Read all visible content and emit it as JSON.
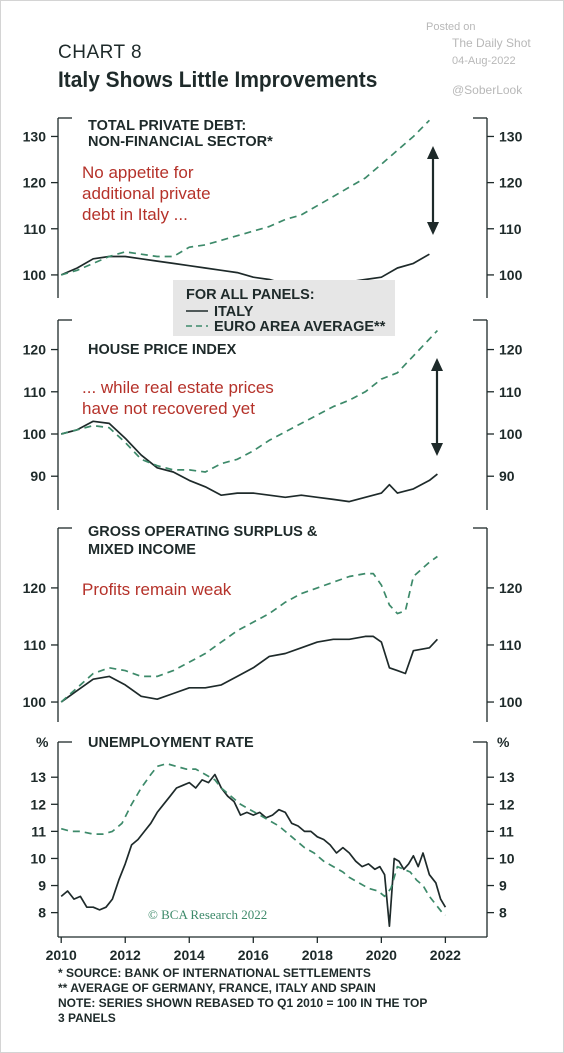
{
  "header": {
    "chart_number": "CHART 8",
    "title": "Italy Shows Little Improvements"
  },
  "watermark": {
    "posted_on": "Posted on",
    "source": "The Daily Shot",
    "date": "04-Aug-2022",
    "handle": "@SoberLook"
  },
  "legend": {
    "title": "FOR ALL PANELS:",
    "italy": "ITALY",
    "euro": "EURO AREA AVERAGE**"
  },
  "credit": "© BCA Research 2022",
  "footnotes": [
    "*  SOURCE: BANK OF INTERNATIONAL SETTLEMENTS",
    "** AVERAGE OF GERMANY, FRANCE, ITALY AND SPAIN",
    "NOTE: SERIES SHOWN REBASED TO Q1 2010 = 100 IN THE TOP",
    "3 PANELS"
  ],
  "colors": {
    "italy": "#1e2a2a",
    "euro": "#3d8a6a",
    "annotation": "#b5322a",
    "legend_bg": "#e6e6e6"
  },
  "chart_data": [
    {
      "type": "line",
      "title": "TOTAL PRIVATE DEBT:",
      "subtitle": "NON-FINANCIAL SECTOR*",
      "annotation": "No appetite for additional private debt in Italy ...",
      "annotation_lines": [
        "No appetite for",
        "additional private",
        "debt in Italy ..."
      ],
      "arrow": "double-headed",
      "ylim": [
        95,
        134
      ],
      "yticks": [
        100,
        110,
        120,
        130
      ],
      "ytick_labels": [
        "100",
        "110",
        "120",
        "130"
      ],
      "series": [
        {
          "name": "ITALY",
          "style": "solid",
          "x": [
            2010.0,
            2010.5,
            2011.0,
            2011.5,
            2012.0,
            2012.5,
            2013.0,
            2013.5,
            2014.0,
            2014.5,
            2015.0,
            2015.5,
            2016.0,
            2016.5,
            2017.0,
            2017.5,
            2018.0,
            2018.5,
            2019.0,
            2019.5,
            2020.0,
            2020.5,
            2021.0,
            2021.5
          ],
          "values": [
            100,
            101.5,
            103.5,
            104,
            104,
            103.5,
            103,
            102.5,
            102,
            101.5,
            101,
            100.5,
            99.5,
            99,
            98,
            97.5,
            98,
            98,
            98.5,
            99,
            99.5,
            101.5,
            102.5,
            104.5
          ]
        },
        {
          "name": "EURO AREA AVERAGE**",
          "style": "dashed",
          "x": [
            2010.0,
            2010.5,
            2011.0,
            2011.5,
            2012.0,
            2012.5,
            2013.0,
            2013.5,
            2014.0,
            2014.5,
            2015.0,
            2015.5,
            2016.0,
            2016.5,
            2017.0,
            2017.5,
            2018.0,
            2018.5,
            2019.0,
            2019.5,
            2020.0,
            2020.5,
            2021.0,
            2021.5
          ],
          "values": [
            100,
            101,
            102.5,
            104,
            105,
            104.5,
            104,
            104,
            106,
            106.5,
            107.5,
            108.5,
            109.5,
            110.5,
            112,
            113,
            115,
            117,
            119,
            121,
            124,
            127,
            130,
            133.5
          ]
        }
      ]
    },
    {
      "type": "line",
      "title": "HOUSE PRICE INDEX",
      "annotation": "... while real estate prices have not recovered yet",
      "annotation_lines": [
        "... while real estate prices",
        "have not recovered yet"
      ],
      "arrow": "double-headed",
      "ylim": [
        82,
        127
      ],
      "yticks": [
        90,
        100,
        110,
        120
      ],
      "ytick_labels": [
        "90",
        "100",
        "110",
        "120"
      ],
      "series": [
        {
          "name": "ITALY",
          "style": "solid",
          "x": [
            2010.0,
            2010.5,
            2011.0,
            2011.5,
            2012.0,
            2012.5,
            2013.0,
            2013.5,
            2014.0,
            2014.5,
            2015.0,
            2015.5,
            2016.0,
            2016.5,
            2017.0,
            2017.5,
            2018.0,
            2018.5,
            2019.0,
            2019.5,
            2020.0,
            2020.25,
            2020.5,
            2021.0,
            2021.5,
            2021.75
          ],
          "values": [
            100,
            101,
            103,
            102.5,
            99,
            95,
            92,
            91,
            89,
            87.5,
            85.5,
            86,
            86,
            85.5,
            85,
            85.5,
            85,
            84.5,
            84,
            85,
            86,
            88,
            86,
            87,
            89,
            90.5
          ]
        },
        {
          "name": "EURO AREA AVERAGE**",
          "style": "dashed",
          "x": [
            2010.0,
            2010.5,
            2011.0,
            2011.5,
            2012.0,
            2012.5,
            2013.0,
            2013.5,
            2014.0,
            2014.5,
            2015.0,
            2015.5,
            2016.0,
            2016.5,
            2017.0,
            2017.5,
            2018.0,
            2018.5,
            2019.0,
            2019.5,
            2020.0,
            2020.5,
            2021.0,
            2021.5,
            2021.75
          ],
          "values": [
            100,
            101,
            102,
            101.5,
            98,
            94,
            92.5,
            91.5,
            91.5,
            91,
            93,
            94,
            96,
            98.5,
            100.5,
            102.5,
            104.5,
            106.5,
            108,
            110,
            113,
            114.5,
            118.5,
            122.5,
            124.5
          ]
        }
      ]
    },
    {
      "type": "line",
      "title": "GROSS OPERATING SURPLUS &",
      "subtitle": "MIXED INCOME",
      "annotation": "Profits remain weak",
      "annotation_lines": [
        "Profits remain weak"
      ],
      "ylim": [
        96.5,
        130.5
      ],
      "yticks": [
        100,
        110,
        120
      ],
      "ytick_labels": [
        "100",
        "110",
        "120"
      ],
      "series": [
        {
          "name": "ITALY",
          "style": "solid",
          "x": [
            2010.0,
            2010.5,
            2011.0,
            2011.5,
            2012.0,
            2012.5,
            2013.0,
            2013.5,
            2014.0,
            2014.5,
            2015.0,
            2015.5,
            2016.0,
            2016.5,
            2017.0,
            2017.5,
            2018.0,
            2018.5,
            2019.0,
            2019.5,
            2019.75,
            2020.0,
            2020.25,
            2020.5,
            2020.75,
            2021.0,
            2021.5,
            2021.75
          ],
          "values": [
            100,
            102,
            104,
            104.5,
            103,
            101,
            100.5,
            101.5,
            102.5,
            102.5,
            103,
            104.5,
            106,
            108,
            108.5,
            109.5,
            110.5,
            111,
            111,
            111.5,
            111.5,
            110.5,
            106,
            105.5,
            105,
            109,
            109.5,
            111
          ]
        },
        {
          "name": "EURO AREA AVERAGE**",
          "style": "dashed",
          "x": [
            2010.0,
            2010.5,
            2011.0,
            2011.5,
            2012.0,
            2012.5,
            2013.0,
            2013.5,
            2014.0,
            2014.5,
            2015.0,
            2015.5,
            2016.0,
            2016.5,
            2017.0,
            2017.5,
            2018.0,
            2018.5,
            2019.0,
            2019.5,
            2019.75,
            2020.0,
            2020.25,
            2020.5,
            2020.75,
            2021.0,
            2021.5,
            2021.75
          ],
          "values": [
            100,
            102.5,
            105,
            106,
            105.5,
            104.5,
            104.5,
            105.5,
            107,
            108.5,
            110.5,
            112.5,
            114,
            115.5,
            117.5,
            119,
            120,
            121,
            122,
            122.5,
            122.5,
            120.5,
            117,
            115.5,
            116,
            122,
            124.5,
            125.5
          ]
        }
      ]
    },
    {
      "type": "line",
      "title": "UNEMPLOYMENT RATE",
      "yunit": "%",
      "ylim": [
        7.1,
        14.3
      ],
      "yticks": [
        8,
        9,
        10,
        11,
        12,
        13
      ],
      "ytick_labels": [
        "8",
        "9",
        "10",
        "11",
        "12",
        "13"
      ],
      "series": [
        {
          "name": "ITALY",
          "style": "solid",
          "x": [
            2010.0,
            2010.2,
            2010.4,
            2010.6,
            2010.8,
            2011.0,
            2011.2,
            2011.4,
            2011.6,
            2011.8,
            2012.0,
            2012.2,
            2012.4,
            2012.6,
            2012.8,
            2013.0,
            2013.2,
            2013.4,
            2013.6,
            2013.8,
            2014.0,
            2014.2,
            2014.4,
            2014.6,
            2014.8,
            2015.0,
            2015.2,
            2015.4,
            2015.6,
            2015.8,
            2016.0,
            2016.2,
            2016.4,
            2016.6,
            2016.8,
            2017.0,
            2017.2,
            2017.4,
            2017.6,
            2017.8,
            2018.0,
            2018.2,
            2018.4,
            2018.6,
            2018.8,
            2019.0,
            2019.2,
            2019.4,
            2019.6,
            2019.8,
            2019.95,
            2020.1,
            2020.25,
            2020.4,
            2020.55,
            2020.7,
            2020.85,
            2021.0,
            2021.15,
            2021.3,
            2021.5,
            2021.7,
            2021.85,
            2022.0
          ],
          "values": [
            8.6,
            8.8,
            8.5,
            8.6,
            8.2,
            8.2,
            8.1,
            8.2,
            8.5,
            9.2,
            9.8,
            10.5,
            10.7,
            11.0,
            11.3,
            11.7,
            12.0,
            12.3,
            12.6,
            12.7,
            12.8,
            12.6,
            12.9,
            12.8,
            13.1,
            12.6,
            12.3,
            12.1,
            11.6,
            11.7,
            11.6,
            11.7,
            11.5,
            11.6,
            11.8,
            11.7,
            11.3,
            11.2,
            11.0,
            11.0,
            10.8,
            10.7,
            10.5,
            10.2,
            10.4,
            10.2,
            9.9,
            9.7,
            9.8,
            9.6,
            9.7,
            9.4,
            7.5,
            10.0,
            9.9,
            9.6,
            9.8,
            10.1,
            9.7,
            10.2,
            9.4,
            9.1,
            8.5,
            8.2
          ]
        },
        {
          "name": "EURO AREA AVERAGE**",
          "style": "dashed",
          "x": [
            2010.0,
            2010.3,
            2010.6,
            2011.0,
            2011.3,
            2011.6,
            2011.9,
            2012.2,
            2012.5,
            2012.8,
            2013.0,
            2013.3,
            2013.6,
            2013.9,
            2014.2,
            2014.5,
            2014.8,
            2015.0,
            2015.3,
            2015.6,
            2015.9,
            2016.2,
            2016.5,
            2016.8,
            2017.0,
            2017.3,
            2017.6,
            2017.9,
            2018.2,
            2018.5,
            2018.8,
            2019.0,
            2019.3,
            2019.6,
            2019.9,
            2020.1,
            2020.3,
            2020.5,
            2020.7,
            2020.9,
            2021.1,
            2021.3,
            2021.5,
            2021.7,
            2021.9,
            2022.0
          ],
          "values": [
            11.1,
            11.0,
            11.0,
            10.9,
            10.9,
            11.0,
            11.3,
            12.0,
            12.6,
            13.1,
            13.4,
            13.5,
            13.4,
            13.3,
            13.3,
            13.1,
            12.9,
            12.6,
            12.3,
            12.0,
            11.8,
            11.6,
            11.4,
            11.2,
            11.0,
            10.7,
            10.4,
            10.2,
            9.9,
            9.7,
            9.5,
            9.3,
            9.1,
            8.9,
            8.8,
            8.6,
            8.9,
            9.7,
            9.6,
            9.5,
            9.2,
            9.0,
            8.6,
            8.3,
            8.0,
            7.9
          ]
        }
      ]
    }
  ],
  "xaxis": {
    "xlim": [
      2009.9,
      2023.3
    ],
    "ticks": [
      2010,
      2012,
      2014,
      2016,
      2018,
      2020,
      2022
    ],
    "tick_labels": [
      "2010",
      "2012",
      "2014",
      "2016",
      "2018",
      "2020",
      "2022"
    ]
  }
}
